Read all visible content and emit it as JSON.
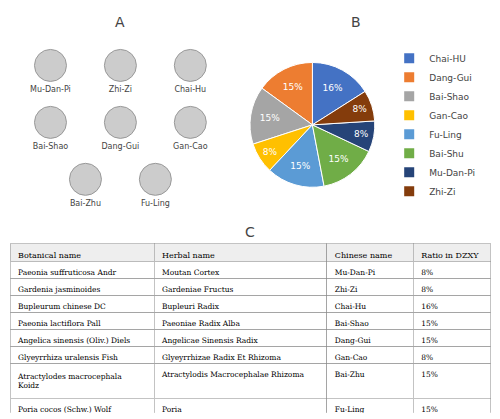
{
  "chart_data": [
    {
      "type": "placeholders",
      "title": "A",
      "labels": [
        [
          "Mu-Dan-Pi",
          "Zhi-Zi",
          "Chai-Hu"
        ],
        [
          "Bai-Shao",
          "Dang-Gui",
          "Gan-Cao"
        ],
        [
          "Bai-Zhu",
          "Fu-Ling"
        ]
      ]
    },
    {
      "type": "pie",
      "title": "B",
      "categories": [
        "Chai-HU",
        "Dang-Gui",
        "Bai-Shao",
        "Gan-Cao",
        "Fu-Ling",
        "Bai-Shu",
        "Mu-Dan-Pi",
        "Zhi-Zi"
      ],
      "values": [
        16,
        15,
        15,
        8,
        15,
        15,
        8,
        8
      ],
      "value_labels": [
        "16%",
        "15%",
        "15%",
        "8%",
        "15%",
        "15%",
        "8%",
        "8%"
      ],
      "colors": [
        "#4472C4",
        "#ED7D31",
        "#A5A5A5",
        "#FFC000",
        "#5B9BD5",
        "#70AD47",
        "#264478",
        "#843C0C"
      ],
      "data_labels": true,
      "legend": "right"
    },
    {
      "type": "table",
      "title": "C",
      "columns": [
        "Botanical name",
        "Herbal name",
        "Chinese name",
        "Ratio in DZXY"
      ],
      "rows": [
        [
          "Paeonia suffruticosa Andr",
          "Moutan Cortex",
          "Mu-Dan-Pi",
          "8%"
        ],
        [
          "Gardenia jasminoides",
          "Gardeniae Fructus",
          "Zhi-Zi",
          "8%"
        ],
        [
          "Bupleurum chinese DC",
          "Bupleuri Radix",
          "Chai-Hu",
          "16%"
        ],
        [
          "Paeonia lactiflora Pall",
          "Paeoniae Radix Alba",
          "Bai-Shao",
          "15%"
        ],
        [
          "Angelica sinensis (Oliv.) Diels",
          "Angelicae Sinensis Radix",
          "Dang-Gui",
          "15%"
        ],
        [
          "Glyeyrrhiza uralensis Fish",
          "Glyeyrrhizae Radix Et Rhizoma",
          "Gan-Cao",
          "8%"
        ],
        [
          "Atractylodes macrocephala Koidz",
          "Atractylodis Macrocephalae Rhizoma",
          "Bai-Zhu",
          "15%"
        ],
        [
          "Poria cocos (Schw.) Wolf",
          "Poria",
          "Fu-Ling",
          "15%"
        ]
      ]
    }
  ]
}
